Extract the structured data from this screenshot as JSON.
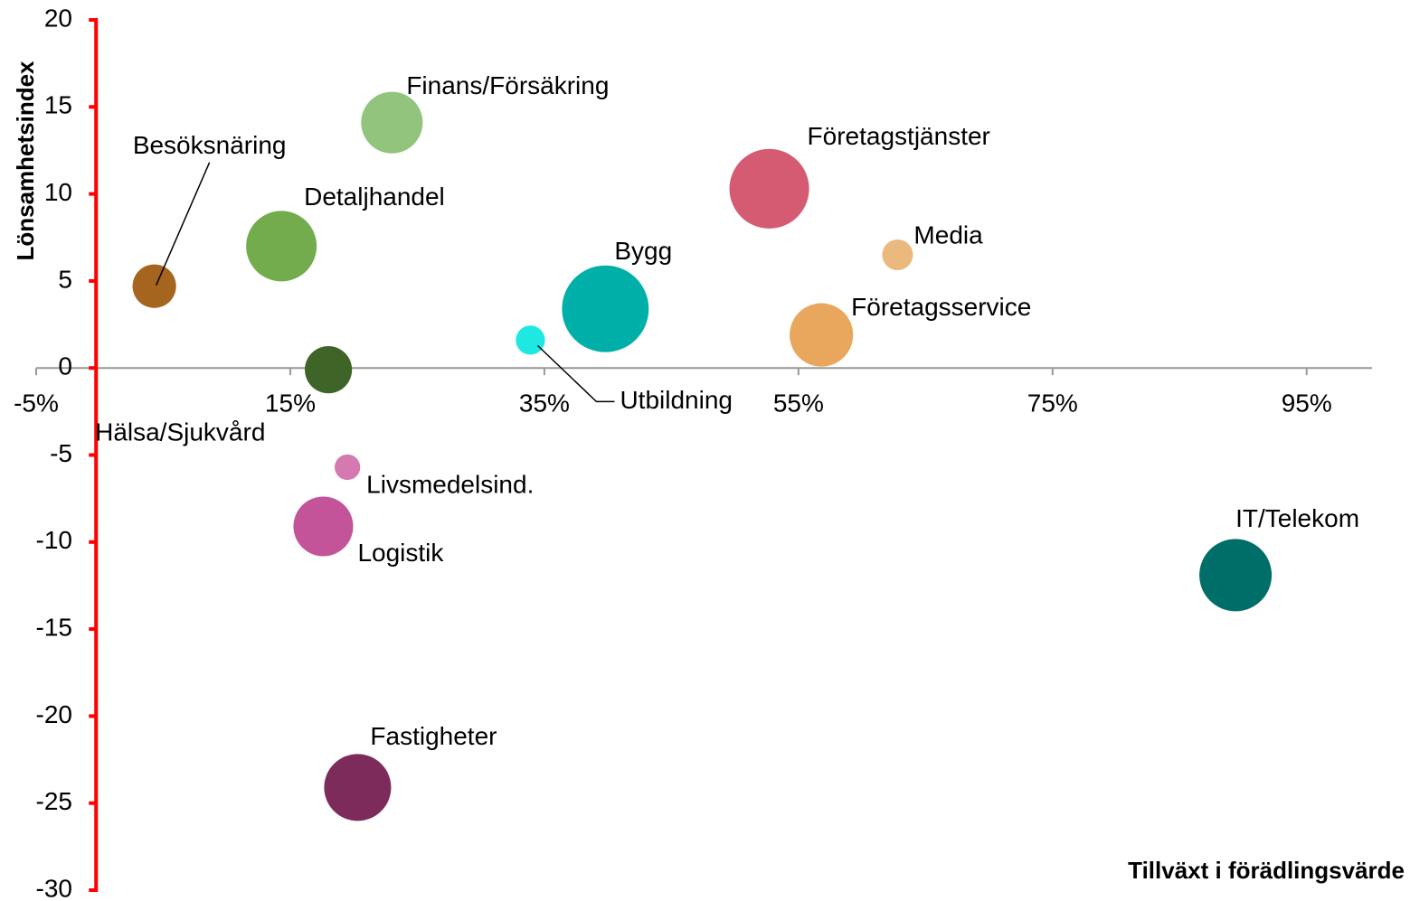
{
  "chart_data": {
    "type": "bubble",
    "x_label": "Tillväxt i förädlingsvärde",
    "y_label": "Lönsamhetsindex",
    "xlim": [
      -5,
      100
    ],
    "xticks": [
      {
        "value": -5,
        "label": "-5%"
      },
      {
        "value": 15,
        "label": "15%"
      },
      {
        "value": 35,
        "label": "35%"
      },
      {
        "value": 55,
        "label": "55%"
      },
      {
        "value": 75,
        "label": "75%"
      },
      {
        "value": 95,
        "label": "95%"
      }
    ],
    "ylim": [
      -30,
      20
    ],
    "yticks": [
      -30,
      -25,
      -20,
      -15,
      -10,
      -5,
      0,
      5,
      10,
      15,
      20
    ],
    "points": [
      {
        "name": "Besöksnäring",
        "x": 4.3,
        "y": 4.7,
        "size": 5.8,
        "color": "#a5651e"
      },
      {
        "name": "Detaljhandel",
        "x": 14.3,
        "y": 7,
        "size": 15.2,
        "color": "#72ac4d"
      },
      {
        "name": "Finans/Försäkring",
        "x": 23,
        "y": 14.1,
        "size": 11.6,
        "color": "#93c47d"
      },
      {
        "name": "Hälsa/Sjukvård",
        "x": 18,
        "y": -0.1,
        "size": 6.8,
        "color": "#3f6428"
      },
      {
        "name": "Utbildning",
        "x": 33.9,
        "y": 1.6,
        "size": 2.6,
        "color": "#1de9e2"
      },
      {
        "name": "Bygg",
        "x": 39.8,
        "y": 3.4,
        "size": 23,
        "color": "#00b0a8"
      },
      {
        "name": "Företagstjänster",
        "x": 52.7,
        "y": 10.3,
        "size": 19.4,
        "color": "#d45b72"
      },
      {
        "name": "Media",
        "x": 62.8,
        "y": 6.5,
        "size": 2.9,
        "color": "#ebb97e"
      },
      {
        "name": "Företagsservice",
        "x": 56.8,
        "y": 1.9,
        "size": 12.3,
        "color": "#e8a75c"
      },
      {
        "name": "Livsmedelsind.",
        "x": 19.5,
        "y": -5.7,
        "size": 2,
        "color": "#d47ab0"
      },
      {
        "name": "Logistik",
        "x": 17.6,
        "y": -9.1,
        "size": 10.9,
        "color": "#c45499"
      },
      {
        "name": "IT/Telekom",
        "x": 89.4,
        "y": -11.9,
        "size": 16,
        "color": "#006e68"
      },
      {
        "name": "Fastigheter",
        "x": 20.3,
        "y": -24.1,
        "size": 13.7,
        "color": "#7d2b5b"
      }
    ]
  }
}
